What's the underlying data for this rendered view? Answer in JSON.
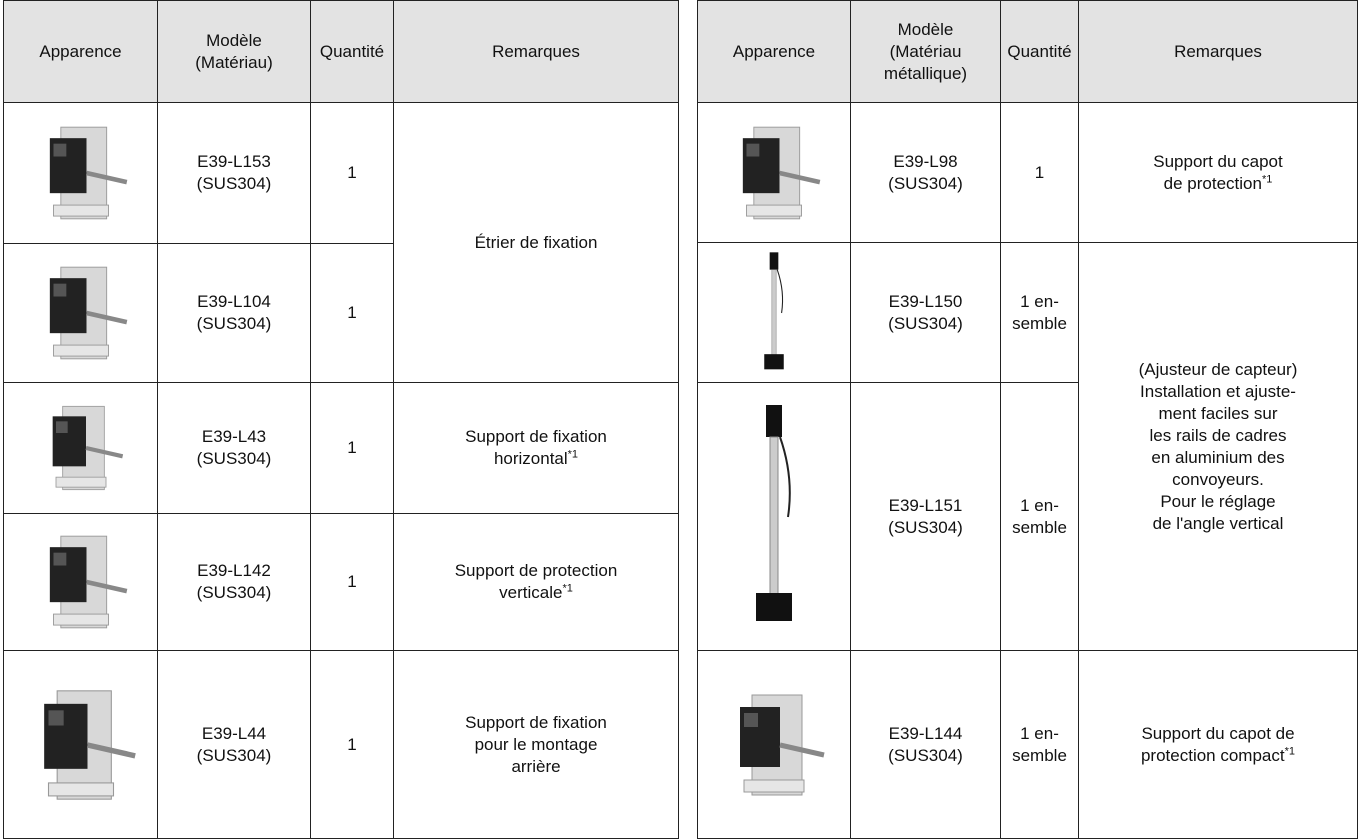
{
  "left_table": {
    "headers": [
      [
        "Apparence"
      ],
      [
        "Modèle",
        "(Matériau)"
      ],
      [
        "Quantité"
      ],
      [
        "Remarques"
      ]
    ],
    "rows": [
      {
        "model": [
          "E39-L153",
          "(SUS304)"
        ],
        "quantity": [
          "1"
        ]
      },
      {
        "model": [
          "E39-L104",
          "(SUS304)"
        ],
        "quantity": [
          "1"
        ]
      },
      {
        "model": [
          "E39-L43",
          "(SUS304)"
        ],
        "quantity": [
          "1"
        ]
      },
      {
        "model": [
          "E39-L142",
          "(SUS304)"
        ],
        "quantity": [
          "1"
        ]
      },
      {
        "model": [
          "E39-L44",
          "(SUS304)"
        ],
        "quantity": [
          "1"
        ]
      }
    ],
    "remarks": [
      {
        "lines": [
          "Étrier de fixation"
        ]
      },
      {
        "lines": [
          "Support de fixation",
          "horizontal"
        ],
        "note": "*1"
      },
      {
        "lines": [
          "Support de protection",
          "verticale"
        ],
        "note": "*1"
      },
      {
        "lines": [
          "Support de fixation",
          "pour le montage",
          "arrière"
        ]
      }
    ]
  },
  "right_table": {
    "headers": [
      [
        "Apparence"
      ],
      [
        "Modèle",
        "(Matériau",
        "métallique)"
      ],
      [
        "Quantité"
      ],
      [
        "Remarques"
      ]
    ],
    "rows": [
      {
        "model": [
          "E39-L98",
          "(SUS304)"
        ],
        "quantity": [
          "1"
        ]
      },
      {
        "model": [
          "E39-L150",
          "(SUS304)"
        ],
        "quantity": [
          "1 en-",
          "semble"
        ]
      },
      {
        "model": [
          "E39-L151",
          "(SUS304)"
        ],
        "quantity": [
          "1 en-",
          "semble"
        ]
      },
      {
        "model": [
          "E39-L144",
          "(SUS304)"
        ],
        "quantity": [
          "1 en-",
          "semble"
        ]
      }
    ],
    "remarks": [
      {
        "lines": [
          "Support du capot",
          "de protection"
        ],
        "note": "*1"
      },
      {
        "lines": [
          "(Ajusteur de capteur)",
          "Installation et ajuste-",
          "ment faciles sur",
          "les rails de cadres",
          "en aluminium des",
          "convoyeurs.",
          "Pour le réglage",
          "de l'angle vertical"
        ]
      },
      {
        "lines": [
          "Support du capot de",
          "protection compact"
        ],
        "note": "*1"
      }
    ]
  }
}
